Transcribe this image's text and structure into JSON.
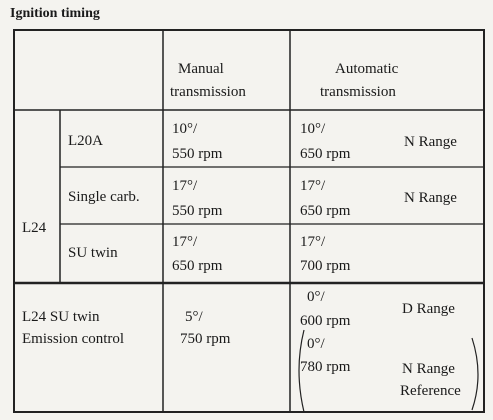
{
  "title": "Ignition timing",
  "columns": {
    "manual": [
      "Manual",
      "transmission"
    ],
    "automatic": [
      "Automatic",
      "transmission"
    ]
  },
  "group": "L24",
  "rows": [
    {
      "model": [
        "L20A"
      ],
      "manual": [
        "10°/",
        "550 rpm"
      ],
      "automatic": [
        {
          "timing": [
            "10°/",
            "650 rpm"
          ],
          "range": [
            "N Range"
          ]
        }
      ]
    },
    {
      "model": [
        "Single carb."
      ],
      "manual": [
        "17°/",
        "550 rpm"
      ],
      "automatic": [
        {
          "timing": [
            "17°/",
            "650 rpm"
          ],
          "range": [
            "N Range"
          ]
        }
      ]
    },
    {
      "model": [
        "SU twin"
      ],
      "manual": [
        "17°/",
        "650 rpm"
      ],
      "automatic": [
        {
          "timing": [
            "17°/",
            "700 rpm"
          ]
        }
      ]
    },
    {
      "model": [
        "L24 SU twin",
        "Emission control"
      ],
      "manual": [
        "5°/",
        "750 rpm"
      ],
      "automatic": [
        {
          "timing": [
            "0°/",
            "600 rpm"
          ],
          "range": [
            "D Range"
          ]
        },
        {
          "timing": [
            "0°/",
            "780 rpm"
          ],
          "range": [
            "N Range",
            "Reference"
          ]
        }
      ]
    }
  ]
}
